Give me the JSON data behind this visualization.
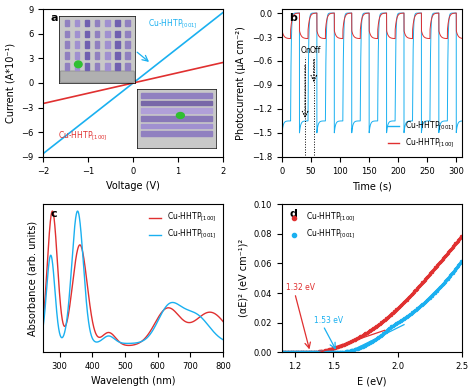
{
  "panel_a": {
    "title": "a",
    "xlabel": "Voltage (V)",
    "ylabel": "Current (A*10⁻¹)",
    "xlim": [
      -2,
      2
    ],
    "ylim": [
      -9,
      9
    ],
    "yticks": [
      -9,
      -6,
      -3,
      0,
      3,
      6,
      9
    ],
    "xticks": [
      -2,
      -1,
      0,
      1,
      2
    ],
    "color_001": "#1ab0f0",
    "color_100": "#e03030",
    "slope_001": 4.3,
    "slope_100": 1.25,
    "label_001": "Cu-HHTP$_{[001]}$",
    "label_100": "Cu-HHTP$_{[100]}$"
  },
  "panel_b": {
    "title": "b",
    "xlabel": "Time (s)",
    "ylabel": "Photocurrent (μA cm⁻²)",
    "xlim": [
      0,
      310
    ],
    "ylim": [
      -1.8,
      0.05
    ],
    "yticks": [
      0.0,
      -0.3,
      -0.6,
      -0.9,
      -1.2,
      -1.5,
      -1.8
    ],
    "xticks": [
      0,
      50,
      100,
      150,
      200,
      250,
      300
    ],
    "color_001": "#1ab0f0",
    "color_100": "#e03030",
    "label_001": "Cu-HHTP$_{[001]}$",
    "label_100": "Cu-HHTP$_{[100]}$"
  },
  "panel_c": {
    "title": "c",
    "xlabel": "Wavelength (nm)",
    "ylabel": "Absorbance (arb. units)",
    "xlim": [
      250,
      800
    ],
    "xticks": [
      300,
      400,
      500,
      600,
      700,
      800
    ],
    "color_100": "#e03030",
    "color_001": "#1ab0f0",
    "label_100": "Cu-HHTP$_{[100]}$",
    "label_001": "Cu-HHTP$_{[001]}$"
  },
  "panel_d": {
    "title": "d",
    "xlabel": "E (eV)",
    "ylabel": "(αE)² (eV cm⁻¹)²",
    "xlim": [
      1.1,
      2.5
    ],
    "ylim": [
      0,
      0.1
    ],
    "xticks": [
      1.2,
      1.5,
      2.0,
      2.5
    ],
    "yticks": [
      0,
      0.02,
      0.04,
      0.06,
      0.08,
      0.1
    ],
    "color_100": "#e03030",
    "color_001": "#1ab0f0",
    "label_100": "Cu-HHTP$_{[100]}$",
    "label_001": "Cu-HHTP$_{[001]}$",
    "bg100": 1.32,
    "bg001": 1.53
  },
  "bg_color": "#ffffff",
  "tick_fontsize": 6,
  "label_fontsize": 7,
  "title_fontsize": 8,
  "legend_fontsize": 5.5
}
